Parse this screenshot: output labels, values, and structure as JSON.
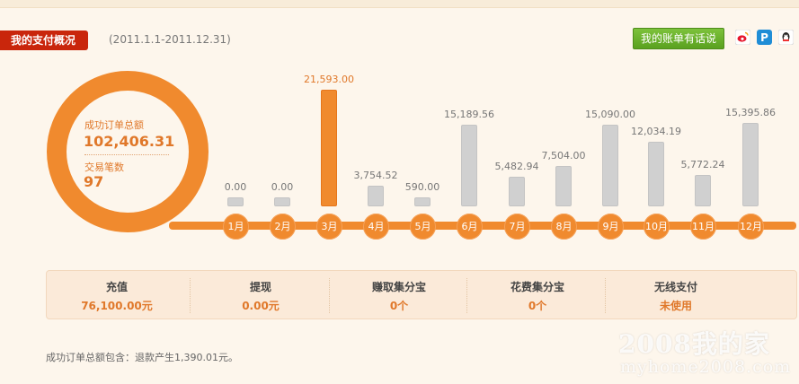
{
  "header": {
    "title": "我的支付概况",
    "date_range": "(2011.1.1-2011.12.31)",
    "feedback_label": "我的账单有话说",
    "share_icons": [
      "sina-weibo-icon",
      "renren-icon",
      "qq-icon"
    ]
  },
  "summary": {
    "order_total_label": "成功订单总额",
    "order_total_value": "102,406.31",
    "trade_count_label": "交易笔数",
    "trade_count_value": "97"
  },
  "chart_data": {
    "type": "bar",
    "categories": [
      "1月",
      "2月",
      "3月",
      "4月",
      "5月",
      "6月",
      "7月",
      "8月",
      "9月",
      "10月",
      "11月",
      "12月"
    ],
    "values": [
      0.0,
      0.0,
      21593.0,
      3754.52,
      590.0,
      15189.56,
      5482.94,
      7504.0,
      15090.0,
      12034.19,
      5772.24,
      15395.86
    ],
    "value_labels": [
      "0.00",
      "0.00",
      "21,593.00",
      "3,754.52",
      "590.00",
      "15,189.56",
      "5,482.94",
      "7,504.00",
      "15,090.00",
      "12,034.19",
      "5,772.24",
      "15,395.86"
    ],
    "highlight_index": 2,
    "colors": {
      "bar": "#d0d0d0",
      "highlight": "#f08a2e",
      "timeline": "#f08a2e"
    },
    "grid": false
  },
  "stats": [
    {
      "label": "充值",
      "value": "76,100.00元"
    },
    {
      "label": "提现",
      "value": "0.00元"
    },
    {
      "label": "赚取集分宝",
      "value": "0个"
    },
    {
      "label": "花费集分宝",
      "value": "0个"
    },
    {
      "label": "无线支付",
      "value": "未使用"
    }
  ],
  "footnote": "成功订单总额包含：退款产生1,390.01元。",
  "watermark": {
    "line1": "2008我的家",
    "line2": "myhome2008.com"
  },
  "colors": {
    "accent": "#f08a2e",
    "title_red": "#c9260c",
    "green": "#6bb12b",
    "background": "#fdf6ec"
  }
}
